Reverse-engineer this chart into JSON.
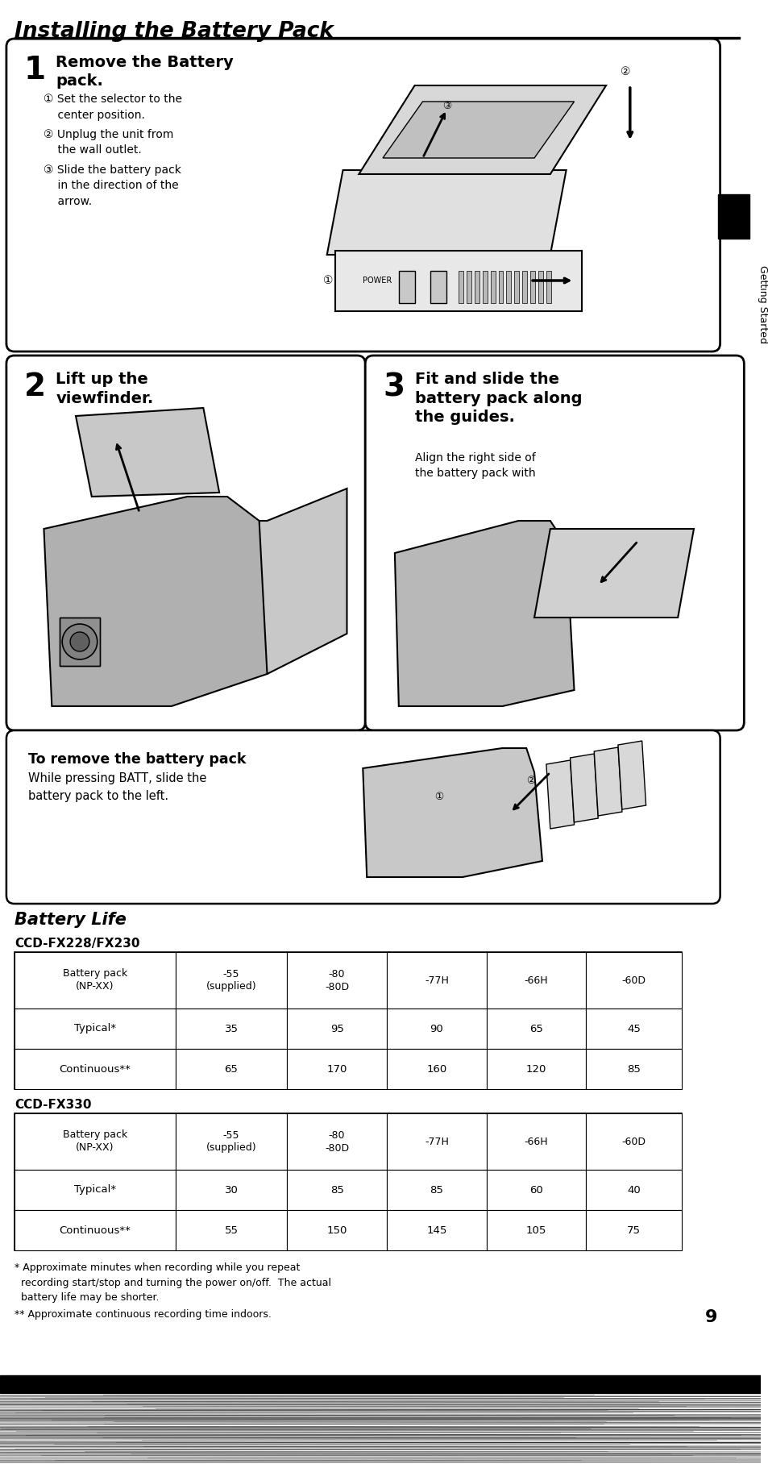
{
  "title": "Installing the Battery Pack",
  "page_bg": "#ffffff",
  "section1": {
    "step_num": "1",
    "step_title_bold": "Remove the Battery\npack.",
    "bullets": [
      "① Set the selector to the\n    center position.",
      "② Unplug the unit from\n    the wall outlet.",
      "③ Slide the battery pack\n    in the direction of the\n    arrow."
    ]
  },
  "section2": {
    "step_num": "2",
    "step_title": "Lift up the\nviewfinder."
  },
  "section3": {
    "step_num": "3",
    "step_title": "Fit and slide the\nbattery pack along\nthe guides.",
    "sub": "Align the right side of\nthe battery pack with"
  },
  "remove_section": {
    "title": "To remove the battery pack",
    "body": "While pressing BATT, slide the\nbattery pack to the left."
  },
  "battery_life_title": "Battery Life",
  "table1_title": "CCD-FX228/FX230",
  "table2_title": "CCD-FX330",
  "table_headers": [
    "Battery pack\n(NP-XX)",
    "-55\n(supplied)",
    "-80\n-80D",
    "-77H",
    "-66H",
    "-60D"
  ],
  "table1_rows": [
    [
      "Typical*",
      "35",
      "95",
      "90",
      "65",
      "45"
    ],
    [
      "Continuous**",
      "65",
      "170",
      "160",
      "120",
      "85"
    ]
  ],
  "table2_rows": [
    [
      "Typical*",
      "30",
      "85",
      "85",
      "60",
      "40"
    ],
    [
      "Continuous**",
      "55",
      "150",
      "145",
      "105",
      "75"
    ]
  ],
  "footnote1": "* Approximate minutes when recording while you repeat\n  recording start/stop and turning the power on/off.  The actual\n  battery life may be shorter.",
  "footnote2": "** Approximate continuous recording time indoors.",
  "page_num": "9",
  "side_label": "Getting Started"
}
